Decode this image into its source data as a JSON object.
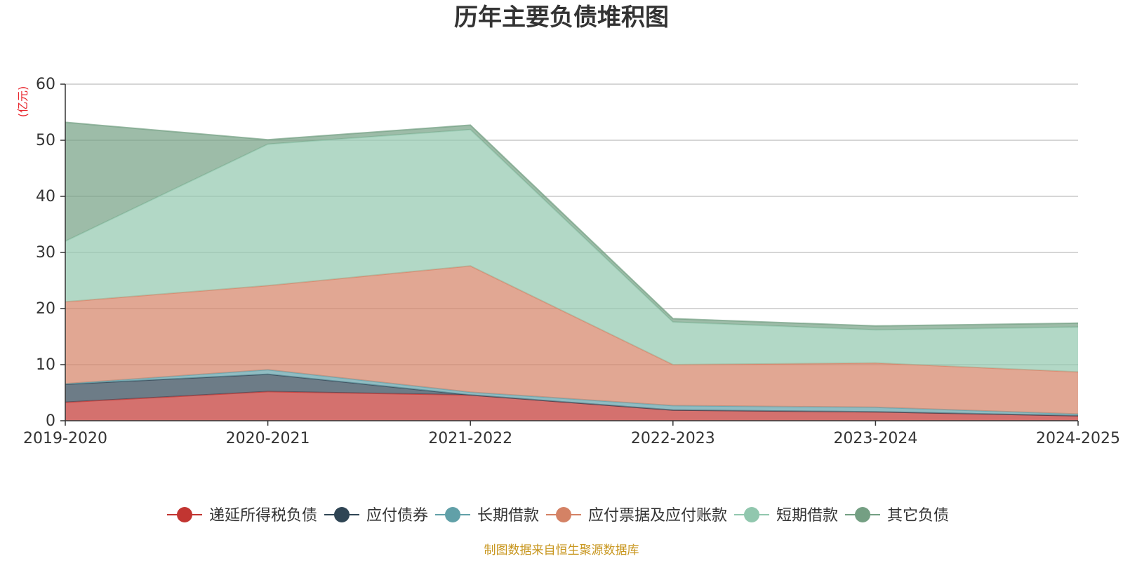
{
  "chart_data": {
    "type": "area",
    "stacked": true,
    "title": "历年主要负债堆积图",
    "unit": "(亿元)",
    "categories": [
      "2019-2020",
      "2020-2021",
      "2021-2022",
      "2022-2023",
      "2023-2024",
      "2024-2025"
    ],
    "ylim": [
      0,
      60
    ],
    "yticks": [
      0,
      10,
      20,
      30,
      40,
      50,
      60
    ],
    "grid": true,
    "legend_position": "bottom",
    "series": [
      {
        "name": "递延所得税负债",
        "color": "#c23531",
        "values": [
          3.3,
          5.2,
          4.6,
          1.9,
          1.6,
          0.9
        ]
      },
      {
        "name": "应付债券",
        "color": "#2f4554",
        "values": [
          3.2,
          3.1,
          0.0,
          0.0,
          0.0,
          0.0
        ]
      },
      {
        "name": "长期借款",
        "color": "#61a0a8",
        "values": [
          0.1,
          0.8,
          0.5,
          0.8,
          0.8,
          0.3
        ]
      },
      {
        "name": "应付票据及应付账款",
        "color": "#d48265",
        "values": [
          14.6,
          15.0,
          22.5,
          7.3,
          7.9,
          7.5
        ]
      },
      {
        "name": "短期借款",
        "color": "#91c7ae",
        "values": [
          10.8,
          25.2,
          24.3,
          7.6,
          5.9,
          8.0
        ]
      },
      {
        "name": "其它负债",
        "color": "#749f83",
        "values": [
          21.2,
          0.8,
          0.8,
          0.6,
          0.7,
          0.7
        ]
      }
    ]
  },
  "source_note": "制图数据来自恒生聚源数据库"
}
